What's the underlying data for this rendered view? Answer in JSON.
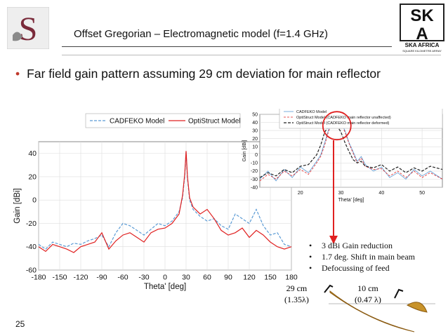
{
  "slide": {
    "title": "Offset Gregorian – Electromagnetic model (f=1.4 GHz)",
    "bullet": "Far field gain pattern assuming 29 cm deviation for main reflector",
    "page_number": "25",
    "notes": [
      "3 dBi Gain reduction",
      "1.7 deg. Shift in main beam",
      "Defocussing of feed"
    ],
    "label_29cm": [
      "29 cm",
      "(1.35λ)"
    ],
    "label_10cm": [
      "10 cm",
      "(0.47 λ)"
    ],
    "logo_right_text": [
      "SK",
      "A",
      "SKA AFRICA",
      "SQUARE KILOMETRE ARRAY"
    ]
  },
  "colors": {
    "cadfeko": "#5b9bd5",
    "optistruct": "#e02020",
    "deformed": "#222222",
    "arrow": "#e02020",
    "circle": "#e02020",
    "reflector": "#c8932a"
  },
  "chart_data": [
    {
      "type": "line",
      "xlabel": "Theta' [deg]",
      "ylabel": "Gain [dBi]",
      "xlim": [
        -180,
        180
      ],
      "ylim": [
        -60,
        50
      ],
      "xticks": [
        -180,
        -150,
        -120,
        -90,
        -60,
        -30,
        0,
        30,
        60,
        90,
        120,
        150,
        180
      ],
      "yticks": [
        40,
        20,
        0,
        -20,
        -40,
        -60
      ],
      "grid": true,
      "legend": "top",
      "series": [
        {
          "name": "CADFEKO Model",
          "x": [
            -180,
            -170,
            -160,
            -150,
            -140,
            -130,
            -120,
            -110,
            -100,
            -90,
            -80,
            -70,
            -60,
            -50,
            -40,
            -30,
            -20,
            -10,
            0,
            10,
            20,
            25,
            28,
            30,
            32,
            35,
            40,
            50,
            60,
            70,
            80,
            90,
            100,
            110,
            120,
            130,
            140,
            150,
            160,
            170,
            180
          ],
          "y": [
            -38,
            -42,
            -36,
            -38,
            -40,
            -37,
            -38,
            -35,
            -33,
            -30,
            -40,
            -28,
            -20,
            -22,
            -26,
            -30,
            -25,
            -20,
            -22,
            -18,
            -10,
            2,
            20,
            41,
            18,
            0,
            -8,
            -14,
            -18,
            -16,
            -22,
            -25,
            -12,
            -16,
            -20,
            -8,
            -22,
            -30,
            -28,
            -38,
            -40
          ]
        },
        {
          "name": "OptiStruct Model",
          "x": [
            -180,
            -170,
            -160,
            -150,
            -140,
            -130,
            -120,
            -110,
            -100,
            -90,
            -80,
            -70,
            -60,
            -50,
            -40,
            -30,
            -20,
            -10,
            0,
            10,
            20,
            25,
            28,
            30,
            32,
            35,
            40,
            50,
            60,
            70,
            80,
            90,
            100,
            110,
            120,
            130,
            140,
            150,
            160,
            170,
            180
          ],
          "y": [
            -40,
            -44,
            -38,
            -40,
            -42,
            -45,
            -40,
            -38,
            -36,
            -28,
            -42,
            -35,
            -30,
            -28,
            -32,
            -36,
            -28,
            -25,
            -24,
            -20,
            -12,
            4,
            22,
            42,
            20,
            2,
            -6,
            -12,
            -8,
            -16,
            -26,
            -30,
            -28,
            -24,
            -32,
            -26,
            -30,
            -36,
            -40,
            -42,
            -40
          ]
        }
      ]
    },
    {
      "type": "line",
      "xlabel": "Theta' [deg]",
      "ylabel": "Gain [dBi]",
      "xlim": [
        10,
        55
      ],
      "ylim": [
        -40,
        50
      ],
      "xticks": [
        20,
        30,
        40,
        50
      ],
      "yticks": [
        50,
        40,
        30,
        20,
        10,
        0,
        -10,
        -20,
        -30,
        -40
      ],
      "grid": true,
      "legend": "top",
      "series": [
        {
          "name": "CADFEKO Model",
          "x": [
            10,
            12,
            14,
            16,
            18,
            20,
            22,
            24,
            25,
            26,
            27,
            28,
            29,
            30,
            31,
            32,
            33,
            34,
            35,
            36,
            38,
            40,
            42,
            44,
            46,
            48,
            50,
            52,
            55
          ],
          "y": [
            -30,
            -20,
            -32,
            -18,
            -28,
            -15,
            -22,
            -8,
            0,
            15,
            32,
            38,
            42,
            40,
            30,
            15,
            4,
            -8,
            -2,
            -12,
            -20,
            -15,
            -28,
            -22,
            -30,
            -18,
            -26,
            -20,
            -30
          ]
        },
        {
          "name": "OptiStruct Model (CADFEKO main reflector unaffected)",
          "x": [
            10,
            12,
            14,
            16,
            18,
            20,
            22,
            24,
            25,
            26,
            27,
            28,
            29,
            30,
            31,
            32,
            33,
            34,
            35,
            36,
            38,
            40,
            42,
            44,
            46,
            48,
            50,
            52,
            55
          ],
          "y": [
            -32,
            -24,
            -30,
            -20,
            -26,
            -18,
            -24,
            -10,
            -2,
            12,
            30,
            38,
            41,
            39,
            28,
            14,
            2,
            -10,
            -4,
            -14,
            -18,
            -17,
            -26,
            -20,
            -28,
            -20,
            -28,
            -22,
            -30
          ]
        },
        {
          "name": "OptiStruct Model (CADFEKO main reflector deformed)",
          "x": [
            10,
            12,
            14,
            16,
            18,
            20,
            22,
            24,
            25,
            26,
            27,
            28,
            29,
            30,
            31,
            32,
            33,
            34,
            35,
            36,
            38,
            40,
            42,
            44,
            46,
            48,
            50,
            52,
            55
          ],
          "y": [
            -28,
            -22,
            -26,
            -18,
            -22,
            -14,
            -12,
            0,
            12,
            28,
            36,
            39,
            36,
            28,
            15,
            4,
            -6,
            -10,
            -8,
            -14,
            -16,
            -12,
            -20,
            -15,
            -22,
            -16,
            -20,
            -14,
            -18
          ]
        }
      ]
    }
  ]
}
